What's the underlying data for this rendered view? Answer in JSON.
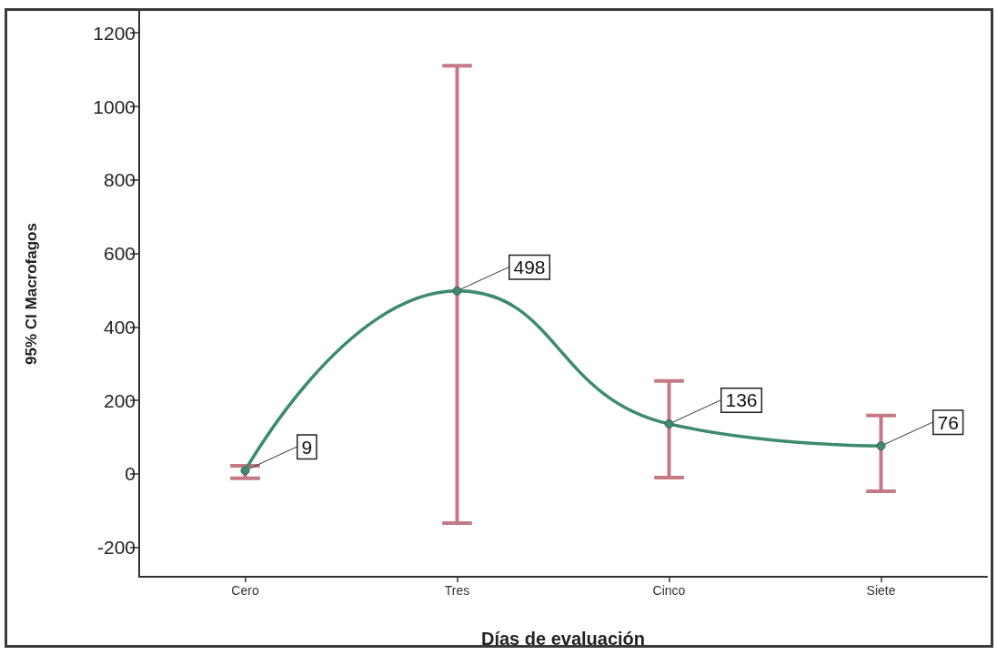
{
  "chart_data": {
    "type": "line",
    "xlabel": "Días de evaluación",
    "ylabel": "95% CI Macrofagos",
    "categories": [
      "Cero",
      "Tres",
      "Cinco",
      "Siete"
    ],
    "values": [
      9,
      498,
      136,
      76
    ],
    "color": "#3e8a6d",
    "errors": [
      [
        -12,
        22
      ],
      [
        -134,
        1111
      ],
      [
        -10,
        253
      ],
      [
        -47,
        159
      ]
    ],
    "ylim": [
      -280,
      1260
    ],
    "yticks": [
      -200,
      0,
      200,
      400,
      600,
      800,
      1000,
      1200
    ],
    "data_labels": true,
    "marker": "circle",
    "line_style": "solid",
    "grid": false
  }
}
